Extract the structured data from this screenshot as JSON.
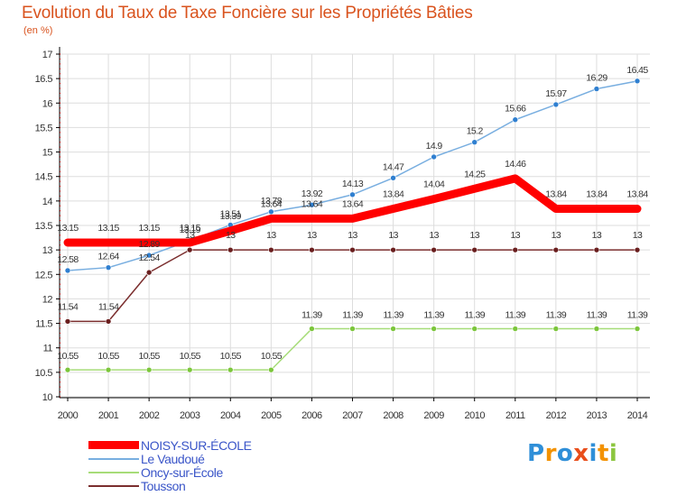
{
  "title": "Evolution du Taux de Taxe Foncière sur les Propriétés Bâties",
  "subtitle": "(en %)",
  "brand": {
    "letters": [
      "P",
      "r",
      "o",
      "x",
      "i",
      "t",
      "i"
    ],
    "colors": [
      "#2f8fd8",
      "#f39200",
      "#2f8fd8",
      "#e94e1b",
      "#2f8fd8",
      "#f39200",
      "#8cc63f"
    ]
  },
  "colors": {
    "title": "#d9531e",
    "grid": "#dddddd",
    "axis": "#000000",
    "tick_label": "#333333",
    "legend_text": "#3a55c8"
  },
  "chart_data": {
    "type": "line",
    "title": "Evolution du Taux de Taxe Foncière sur les Propriétés Bâties",
    "ylabel": "(en %)",
    "xlabel": "",
    "ylim": [
      10,
      17
    ],
    "yticks": [
      "10",
      "10.5",
      "11",
      "11.5",
      "12",
      "12.5",
      "13",
      "13.5",
      "14",
      "14.5",
      "15",
      "15.5",
      "16",
      "16.5",
      "17"
    ],
    "x": [
      "2000",
      "2001",
      "2002",
      "2003",
      "2004",
      "2005",
      "2006",
      "2007",
      "2008",
      "2009",
      "2010",
      "2011",
      "2012",
      "2013",
      "2014"
    ],
    "grid": true,
    "legend_position": "bottom-left",
    "series": [
      {
        "name": "NOISY-SUR-ÉCOLE",
        "color": "#ff0000",
        "marker_color": "#ff0000",
        "values": [
          13.15,
          13.15,
          13.15,
          13.15,
          13.39,
          13.64,
          13.64,
          13.64,
          13.84,
          14.04,
          14.25,
          14.46,
          13.84,
          13.84,
          13.84
        ],
        "labels": [
          "13.15",
          "13.15",
          "13.15",
          "13.15",
          "13.39",
          "13.64",
          "13.64",
          "13.64",
          "13.84",
          "14.04",
          "14.25",
          "14.46",
          "13.84",
          "13.84",
          "13.84"
        ]
      },
      {
        "name": "Le Vaudoué",
        "color": "#78aee0",
        "marker_color": "#2f7fd0",
        "values": [
          12.58,
          12.64,
          12.89,
          13.19,
          13.51,
          13.78,
          13.92,
          14.13,
          14.47,
          14.9,
          15.2,
          15.66,
          15.97,
          16.29,
          16.45
        ],
        "labels": [
          "12.58",
          "12.64",
          "12.89",
          "13.19",
          "13.51",
          "13.78",
          "13.92",
          "14.13",
          "14.47",
          "14.9",
          "15.2",
          "15.66",
          "15.97",
          "16.29",
          "16.45"
        ]
      },
      {
        "name": "Oncy-sur-École",
        "color": "#a6dc78",
        "marker_color": "#7cc63c",
        "values": [
          10.55,
          10.55,
          10.55,
          10.55,
          10.55,
          10.55,
          11.39,
          11.39,
          11.39,
          11.39,
          11.39,
          11.39,
          11.39,
          11.39,
          11.39
        ],
        "labels": [
          "10.55",
          "10.55",
          "10.55",
          "10.55",
          "10.55",
          "10.55",
          "11.39",
          "11.39",
          "11.39",
          "11.39",
          "11.39",
          "11.39",
          "11.39",
          "11.39",
          "11.39"
        ]
      },
      {
        "name": "Tousson",
        "color": "#7b2e2e",
        "marker_color": "#6a1f1f",
        "values": [
          11.54,
          11.54,
          12.54,
          13,
          13,
          13,
          13,
          13,
          13,
          13,
          13,
          13,
          13,
          13,
          13
        ],
        "labels": [
          "11.54",
          "11.54",
          "12.54",
          "13",
          "13",
          "13",
          "13",
          "13",
          "13",
          "13",
          "13",
          "13",
          "13",
          "13",
          "13"
        ]
      }
    ]
  }
}
